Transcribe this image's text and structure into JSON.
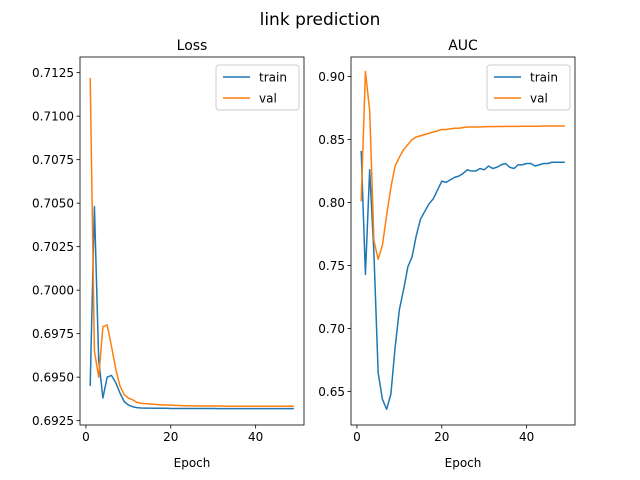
{
  "figure": {
    "title": "link prediction"
  },
  "chart_data": [
    {
      "type": "line",
      "title": "Loss",
      "xlabel": "Epoch",
      "ylabel": "",
      "xlim": [
        -1.4,
        51.4
      ],
      "ylim": [
        0.69225,
        0.7134
      ],
      "xticks": [
        0,
        20,
        40
      ],
      "yticks": [
        0.6925,
        0.695,
        0.6975,
        0.7,
        0.7025,
        0.705,
        0.7075,
        0.71,
        0.7125
      ],
      "ytick_labels": [
        "0.6925",
        "0.6950",
        "0.6975",
        "0.7000",
        "0.7025",
        "0.7050",
        "0.7075",
        "0.7100",
        "0.7125"
      ],
      "grid": false,
      "legend": "upper right",
      "series": [
        {
          "name": "train",
          "color": "#1f77b4",
          "x": [
            1,
            2,
            3,
            4,
            5,
            6,
            7,
            8,
            9,
            10,
            11,
            12,
            13,
            14,
            15,
            16,
            17,
            18,
            19,
            20,
            21,
            22,
            23,
            24,
            25,
            26,
            27,
            28,
            29,
            30,
            31,
            32,
            33,
            34,
            35,
            36,
            37,
            38,
            39,
            40,
            41,
            42,
            43,
            44,
            45,
            46,
            47,
            48,
            49
          ],
          "y": [
            0.6945,
            0.7048,
            0.696,
            0.6938,
            0.695,
            0.6951,
            0.6947,
            0.6941,
            0.6936,
            0.6934,
            0.6933,
            0.69325,
            0.69323,
            0.69322,
            0.69322,
            0.69321,
            0.69321,
            0.69321,
            0.69321,
            0.6932,
            0.6932,
            0.6932,
            0.6932,
            0.6932,
            0.6932,
            0.6932,
            0.6932,
            0.6932,
            0.6932,
            0.6932,
            0.69319,
            0.69319,
            0.69319,
            0.69319,
            0.69319,
            0.69319,
            0.69319,
            0.69319,
            0.69319,
            0.69319,
            0.69319,
            0.69319,
            0.69319,
            0.69319,
            0.69319,
            0.69319,
            0.69319,
            0.69319,
            0.69319
          ]
        },
        {
          "name": "val",
          "color": "#ff7f0e",
          "x": [
            1,
            2,
            3,
            4,
            5,
            6,
            7,
            8,
            9,
            10,
            11,
            12,
            13,
            14,
            15,
            16,
            17,
            18,
            19,
            20,
            21,
            22,
            23,
            24,
            25,
            26,
            27,
            28,
            29,
            30,
            31,
            32,
            33,
            34,
            35,
            36,
            37,
            38,
            39,
            40,
            41,
            42,
            43,
            44,
            45,
            46,
            47,
            48,
            49
          ],
          "y": [
            0.7122,
            0.6965,
            0.695,
            0.6979,
            0.698,
            0.6968,
            0.6955,
            0.6945,
            0.694,
            0.6938,
            0.6937,
            0.69355,
            0.6935,
            0.69348,
            0.69346,
            0.69344,
            0.69342,
            0.69341,
            0.6934,
            0.69339,
            0.69338,
            0.69337,
            0.69336,
            0.69336,
            0.69335,
            0.69335,
            0.69335,
            0.69334,
            0.69334,
            0.69334,
            0.69334,
            0.69334,
            0.69333,
            0.69333,
            0.69333,
            0.69333,
            0.69333,
            0.69333,
            0.69333,
            0.69333,
            0.69333,
            0.69333,
            0.69333,
            0.69333,
            0.69333,
            0.69333,
            0.69333,
            0.69333,
            0.69333
          ]
        }
      ]
    },
    {
      "type": "line",
      "title": "AUC",
      "xlabel": "Epoch",
      "ylabel": "",
      "xlim": [
        -1.4,
        51.4
      ],
      "ylim": [
        0.6235,
        0.9155
      ],
      "xticks": [
        0,
        20,
        40
      ],
      "yticks": [
        0.65,
        0.7,
        0.75,
        0.8,
        0.85,
        0.9
      ],
      "ytick_labels": [
        "0.65",
        "0.70",
        "0.75",
        "0.80",
        "0.85",
        "0.90"
      ],
      "grid": false,
      "legend": "upper right",
      "series": [
        {
          "name": "train",
          "color": "#1f77b4",
          "x": [
            1,
            2,
            3,
            4,
            5,
            6,
            7,
            8,
            9,
            10,
            11,
            12,
            13,
            14,
            15,
            16,
            17,
            18,
            19,
            20,
            21,
            22,
            23,
            24,
            25,
            26,
            27,
            28,
            29,
            30,
            31,
            32,
            33,
            34,
            35,
            36,
            37,
            38,
            39,
            40,
            41,
            42,
            43,
            44,
            45,
            46,
            47,
            48,
            49
          ],
          "y": [
            0.841,
            0.743,
            0.826,
            0.76,
            0.665,
            0.644,
            0.636,
            0.648,
            0.685,
            0.715,
            0.731,
            0.749,
            0.757,
            0.774,
            0.787,
            0.793,
            0.799,
            0.803,
            0.81,
            0.817,
            0.816,
            0.818,
            0.82,
            0.821,
            0.823,
            0.826,
            0.825,
            0.825,
            0.827,
            0.826,
            0.829,
            0.827,
            0.828,
            0.83,
            0.831,
            0.828,
            0.827,
            0.83,
            0.83,
            0.831,
            0.831,
            0.829,
            0.83,
            0.831,
            0.831,
            0.832,
            0.832,
            0.832,
            0.832
          ]
        },
        {
          "name": "val",
          "color": "#ff7f0e",
          "x": [
            1,
            2,
            3,
            4,
            5,
            6,
            7,
            8,
            9,
            10,
            11,
            12,
            13,
            14,
            15,
            16,
            17,
            18,
            19,
            20,
            21,
            22,
            23,
            24,
            25,
            26,
            27,
            28,
            29,
            30,
            31,
            32,
            33,
            34,
            35,
            36,
            37,
            38,
            39,
            40,
            41,
            42,
            43,
            44,
            45,
            46,
            47,
            48,
            49
          ],
          "y": [
            0.801,
            0.904,
            0.873,
            0.77,
            0.755,
            0.766,
            0.79,
            0.812,
            0.829,
            0.836,
            0.842,
            0.846,
            0.85,
            0.852,
            0.853,
            0.854,
            0.855,
            0.856,
            0.857,
            0.858,
            0.858,
            0.8585,
            0.859,
            0.859,
            0.8595,
            0.86,
            0.86,
            0.86,
            0.86,
            0.8602,
            0.8603,
            0.8603,
            0.8604,
            0.8604,
            0.8605,
            0.8605,
            0.8605,
            0.8605,
            0.8606,
            0.8606,
            0.8606,
            0.8606,
            0.8606,
            0.8607,
            0.8607,
            0.8607,
            0.8607,
            0.8607,
            0.8607
          ]
        }
      ]
    }
  ]
}
